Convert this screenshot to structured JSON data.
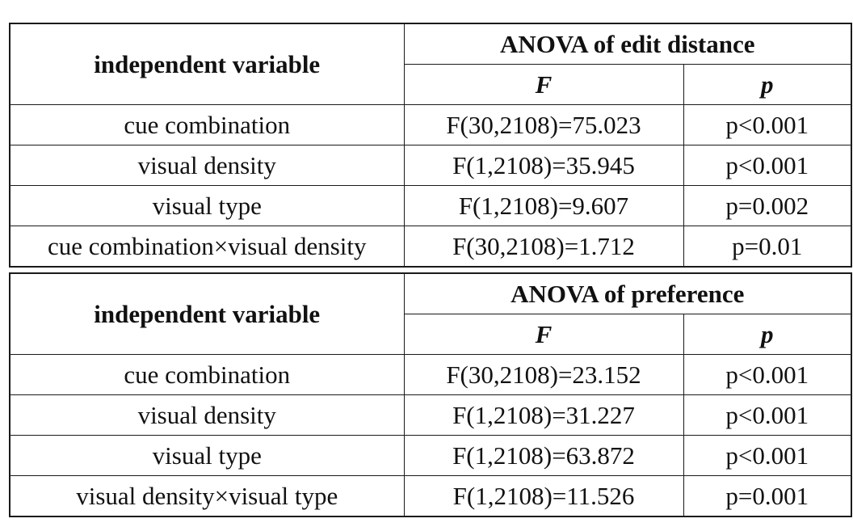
{
  "tables": [
    {
      "header": {
        "variable_label": "independent variable",
        "group_label": "ANOVA of edit distance",
        "f_label": "F",
        "p_label": "p"
      },
      "rows": [
        {
          "variable": "cue combination",
          "f": "F(30,2108)=75.023",
          "p": "p<0.001"
        },
        {
          "variable": "visual density",
          "f": "F(1,2108)=35.945",
          "p": "p<0.001"
        },
        {
          "variable": "visual type",
          "f": "F(1,2108)=9.607",
          "p": "p=0.002"
        },
        {
          "variable": "cue combination×visual density",
          "f": "F(30,2108)=1.712",
          "p": "p=0.01"
        }
      ]
    },
    {
      "header": {
        "variable_label": "independent variable",
        "group_label": "ANOVA of preference",
        "f_label": "F",
        "p_label": "p"
      },
      "rows": [
        {
          "variable": "cue combination",
          "f": "F(30,2108)=23.152",
          "p": "p<0.001"
        },
        {
          "variable": "visual density",
          "f": "F(1,2108)=31.227",
          "p": "p<0.001"
        },
        {
          "variable": "visual type",
          "f": "F(1,2108)=63.872",
          "p": "p<0.001"
        },
        {
          "variable": "visual density×visual type",
          "f": "F(1,2108)=11.526",
          "p": "p=0.001"
        }
      ]
    }
  ]
}
